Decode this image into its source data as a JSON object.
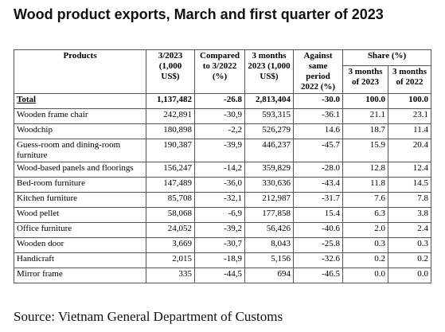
{
  "title": "Wood product exports, March and first quarter of 2023",
  "table": {
    "header_top": [
      "Products",
      "3/2023 (1,000 US$)",
      "Compared to 3/2022 (%)",
      "3 months 2023 (1,000 US$)",
      "Against same period 2022 (%)",
      "Share (%)"
    ],
    "header_sub": [
      "3 months of 2023",
      "3 months of 2022"
    ],
    "rows": [
      [
        "Total",
        "1,137,482",
        "-26.8",
        "2,813,404",
        "-30.0",
        "100.0",
        "100.0"
      ],
      [
        "Wooden frame chair",
        "242,891",
        "-30,9",
        "593,315",
        "-36.1",
        "21.1",
        "23.1"
      ],
      [
        "Woodchip",
        "180,898",
        "-2,2",
        "526,279",
        "14.6",
        "18.7",
        "11.4"
      ],
      [
        "Guess-room and dining-room furniture",
        "190,387",
        "-39,9",
        "446,237",
        "-45.7",
        "15.9",
        "20.4"
      ],
      [
        "Wood-based panels and floorings",
        "156,247",
        "-14,2",
        "359,829",
        "-28.0",
        "12.8",
        "12.4"
      ],
      [
        "Bed-room furniture",
        "147,489",
        "-36,0",
        "330,636",
        "-43.4",
        "11.8",
        "14.5"
      ],
      [
        "Kitchen furniture",
        "85,708",
        "-32,1",
        "212,987",
        "-31.7",
        "7.6",
        "7.8"
      ],
      [
        "Wood pellet",
        "58,068",
        "-6,9",
        "177,858",
        "15.4",
        "6.3",
        "3.8"
      ],
      [
        "Office furniture",
        "24,052",
        "-39,2",
        "56,426",
        "-40.6",
        "2.0",
        "2.4"
      ],
      [
        "Wooden door",
        "3,669",
        "-30,7",
        "8,043",
        "-25.8",
        "0.3",
        "0.3"
      ],
      [
        "Handicraft",
        "2,015",
        "-18,9",
        "5,156",
        "-32.6",
        "0.2",
        "0.2"
      ],
      [
        "Mirror frame",
        "335",
        "-44,5",
        "694",
        "-46.5",
        "0.0",
        "0.0"
      ]
    ]
  },
  "source": "Source: Vietnam General Department of Customs"
}
